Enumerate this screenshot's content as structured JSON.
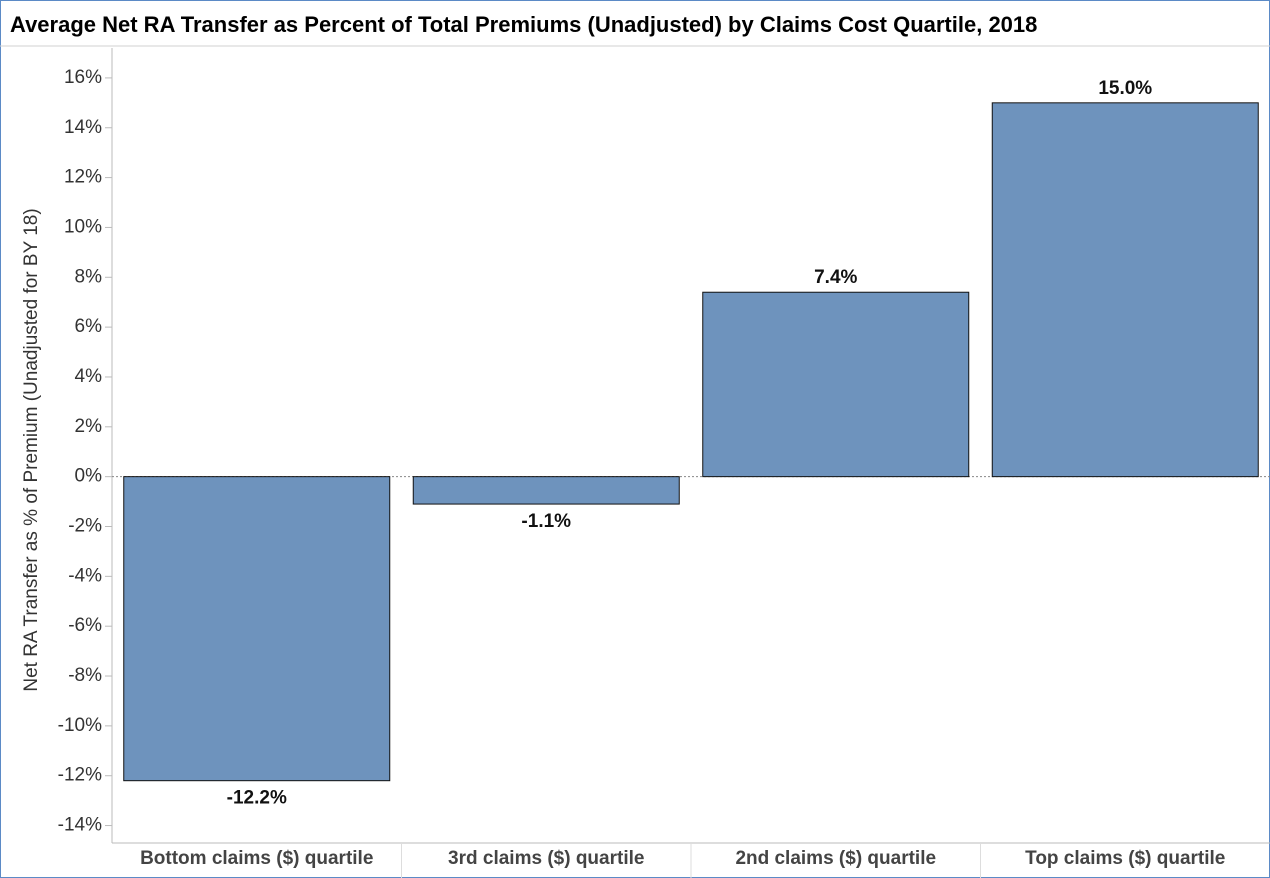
{
  "chart_data": {
    "type": "bar",
    "title": "Average Net RA Transfer as Percent of Total Premiums (Unadjusted) by Claims Cost Quartile, 2018",
    "y_label": "Net RA Transfer as % of Premium (Unadjusted for BY 18)",
    "categories": [
      "Bottom claims ($) quartile",
      "3rd claims ($) quartile",
      "2nd claims ($) quartile",
      "Top claims ($) quartile"
    ],
    "values": [
      -12.2,
      -1.1,
      7.4,
      15.0
    ],
    "value_labels": [
      "-12.2%",
      "-1.1%",
      "7.4%",
      "15.0%"
    ],
    "color": "#6e93bd",
    "ylim": [
      -14.7,
      17.2
    ],
    "yticks": [
      {
        "value": 16,
        "label": "16%"
      },
      {
        "value": 14,
        "label": "14%"
      },
      {
        "value": 12,
        "label": "12%"
      },
      {
        "value": 10,
        "label": "10%"
      },
      {
        "value": 8,
        "label": "8%"
      },
      {
        "value": 6,
        "label": "6%"
      },
      {
        "value": 4,
        "label": "4%"
      },
      {
        "value": 2,
        "label": "2%"
      },
      {
        "value": 0,
        "label": "0%"
      },
      {
        "value": -2,
        "label": "-2%"
      },
      {
        "value": -4,
        "label": "-4%"
      },
      {
        "value": -6,
        "label": "-6%"
      },
      {
        "value": -8,
        "label": "-8%"
      },
      {
        "value": -10,
        "label": "-10%"
      },
      {
        "value": -12,
        "label": "-12%"
      },
      {
        "value": -14,
        "label": "-14%"
      }
    ],
    "grid": false
  }
}
